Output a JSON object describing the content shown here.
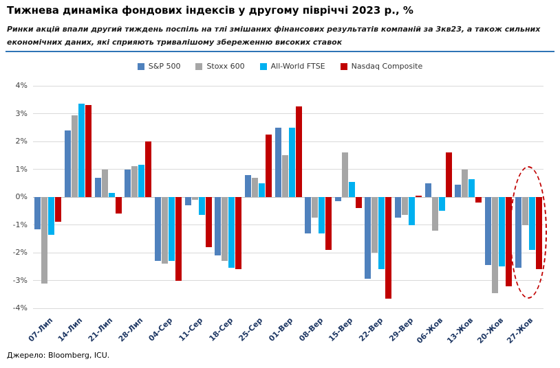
{
  "title": "Тижнева динаміка фондових індексів у другому півріччі 2023 р., %",
  "subtitle": "Ринки акцій впали другий тиждень поспіль на тлі змішаних фінансових результатів компаній за 3кв23, а також сильних економічних даних, які сприяють тривалішому збереженню високих ставок",
  "source": "Джерело: Bloomberg, ICU.",
  "colors": {
    "rule": "#2e74b5",
    "grid": "#d9d9d9",
    "zero_line": "#bfbfbf",
    "y_label": "#404040",
    "x_label": "#1f3864",
    "annotation": "#c00000"
  },
  "chart_data": {
    "type": "bar",
    "title": "Тижнева динаміка фондових індексів у другому півріччі 2023 р., %",
    "xlabel": "",
    "ylabel": "",
    "grid": true,
    "legend_position": "top",
    "ylim": [
      -4,
      4
    ],
    "ytick_step": 1,
    "ytick_labels": [
      "4%",
      "3%",
      "2%",
      "1%",
      "0%",
      "-1%",
      "-2%",
      "-3%",
      "-4%"
    ],
    "categories": [
      "07-Лип",
      "14-Лип",
      "21-Лип",
      "28-Лип",
      "04-Сер",
      "11-Сер",
      "18-Сер",
      "25-Сер",
      "01-Вер",
      "08-Вер",
      "15-Вер",
      "22-Вер",
      "29-Вер",
      "06-Жов",
      "13-Жов",
      "20-Жов",
      "27-Жов"
    ],
    "series": [
      {
        "name": "S&P 500",
        "color": "#4f81bd",
        "values": [
          -1.15,
          2.4,
          0.7,
          1.0,
          -2.3,
          -0.3,
          -2.1,
          0.8,
          2.5,
          -1.3,
          -0.15,
          -2.95,
          -0.75,
          0.5,
          0.45,
          -2.45,
          -2.55
        ]
      },
      {
        "name": "Stoxx 600",
        "color": "#a6a6a6",
        "values": [
          -3.1,
          2.95,
          1.0,
          1.1,
          -2.4,
          -0.1,
          -2.3,
          0.7,
          1.5,
          -0.75,
          1.6,
          -2.0,
          -0.65,
          -1.2,
          1.0,
          -3.45,
          -1.0
        ]
      },
      {
        "name": "All-World FTSE",
        "color": "#00b0f0",
        "values": [
          -1.35,
          3.35,
          0.15,
          1.15,
          -2.3,
          -0.65,
          -2.55,
          0.5,
          2.5,
          -1.3,
          0.55,
          -2.6,
          -1.0,
          -0.5,
          0.65,
          -2.5,
          -1.9
        ]
      },
      {
        "name": "Nasdaq Composite",
        "color": "#c00000",
        "values": [
          -0.9,
          3.3,
          -0.6,
          2.0,
          -3.0,
          -1.8,
          -2.6,
          2.25,
          3.25,
          -1.9,
          -0.4,
          -3.65,
          0.05,
          1.6,
          -0.2,
          -3.2,
          -2.6
        ]
      }
    ],
    "annotation": {
      "shape": "dashed-ellipse",
      "category": "27-Жов",
      "category_index": 16,
      "y_top": 1.1,
      "y_bottom": -3.65,
      "color": "#c00000"
    }
  }
}
